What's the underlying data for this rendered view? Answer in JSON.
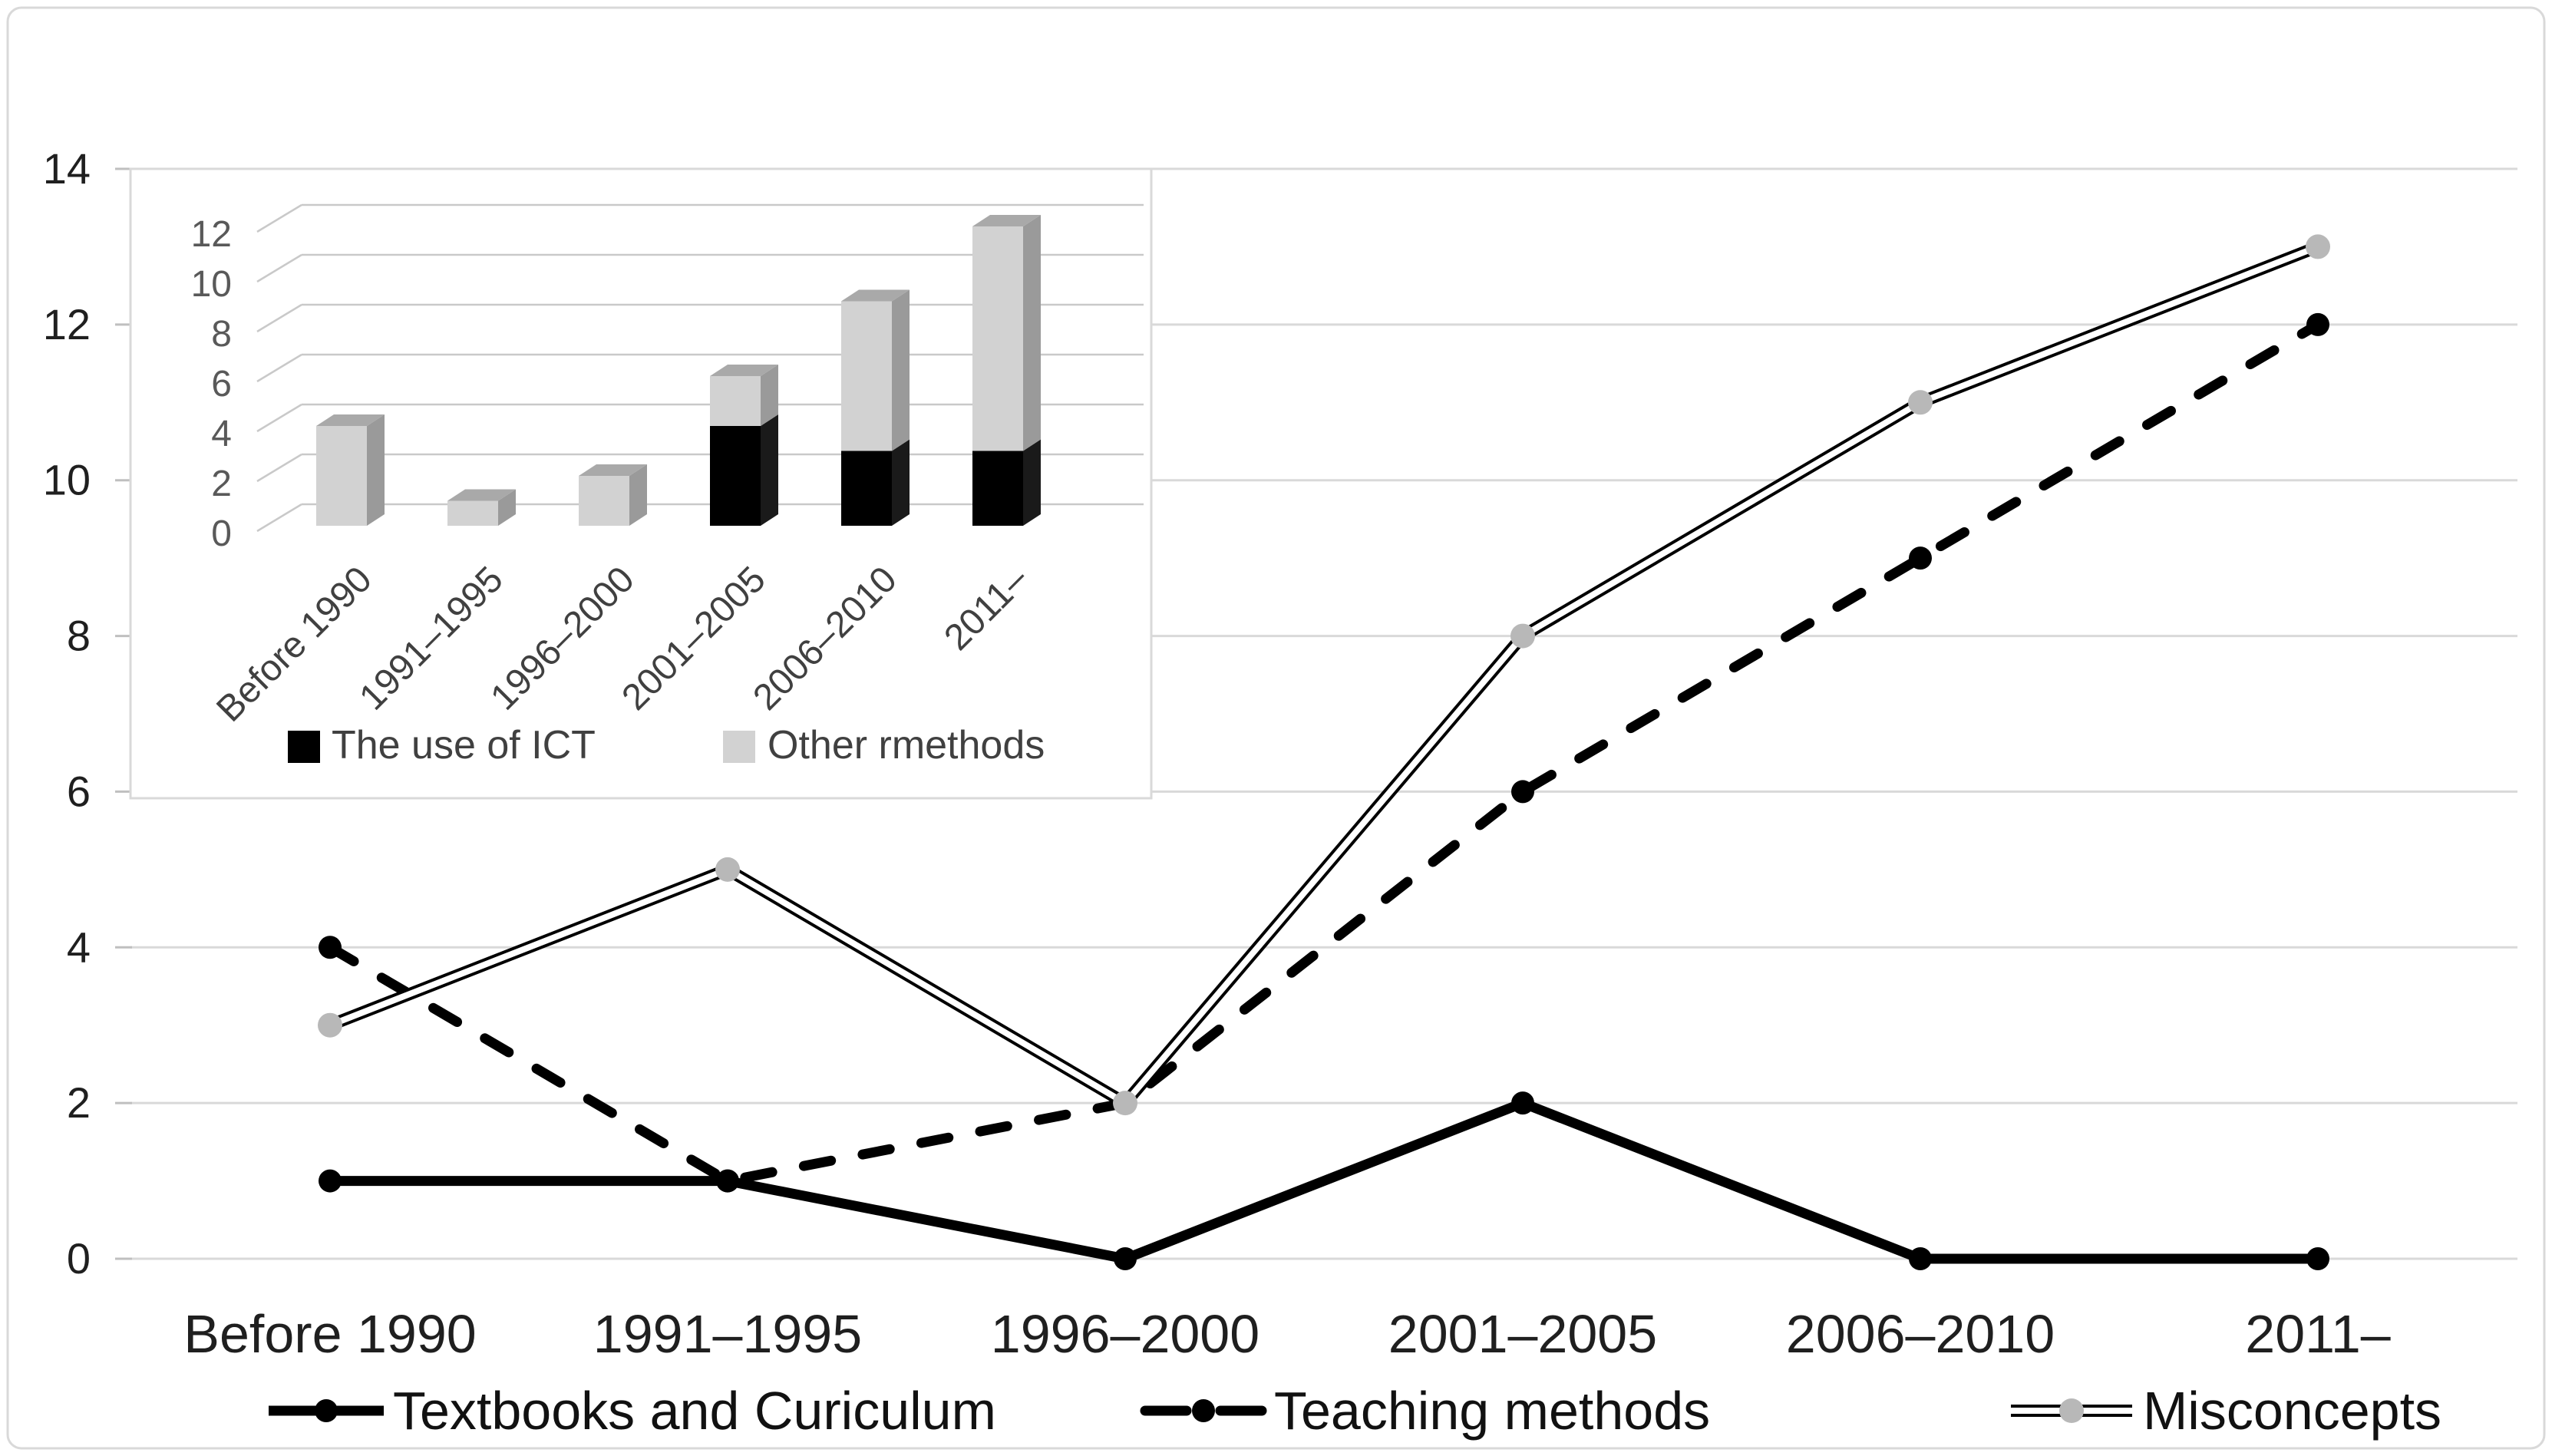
{
  "figure": {
    "title": "",
    "background_color": "#ffffff",
    "frame_color": "#d9d9d9",
    "gridline_color": "#d9d9d9"
  },
  "chart_data": [
    {
      "id": "main-line-chart",
      "type": "line",
      "categories": [
        "Before 1990",
        "1991–1995",
        "1996–2000",
        "2001–2005",
        "2006–2010",
        "2011–"
      ],
      "series": [
        {
          "name": "Textbooks and Curiculum",
          "values": [
            1,
            1,
            0,
            2,
            0,
            0
          ],
          "line_style": "solid",
          "color": "#000000",
          "marker_color": "#000000"
        },
        {
          "name": "Teaching methods",
          "values": [
            4,
            1,
            2,
            6,
            9,
            12
          ],
          "line_style": "dashed",
          "color": "#000000",
          "marker_color": "#000000"
        },
        {
          "name": "Misconcepts",
          "values": [
            3,
            5,
            2,
            8,
            11,
            13
          ],
          "line_style": "double",
          "color": "#000000",
          "marker_color": "#b8b8b8"
        }
      ],
      "xlabel": "",
      "ylabel": "",
      "ylim": [
        0,
        14
      ],
      "yticks": [
        0,
        2,
        4,
        6,
        8,
        10,
        12,
        14
      ],
      "grid": true,
      "legend_position": "bottom"
    },
    {
      "id": "inset-bar-chart",
      "type": "bar",
      "stacked": true,
      "effect": "3d",
      "categories": [
        "Before 1990",
        "1991–1995",
        "1996–2000",
        "2001–2005",
        "2006–2010",
        "2011–"
      ],
      "series": [
        {
          "name": "The use of ICT",
          "values": [
            0,
            0,
            0,
            4,
            3,
            3
          ],
          "color": "#000000",
          "side_color": "#1a1a1a",
          "top_color": "#3a3a3a"
        },
        {
          "name": "Other rmethods",
          "values": [
            4,
            1,
            2,
            2,
            6,
            9
          ],
          "color": "#d2d2d2",
          "side_color": "#9a9a9a",
          "top_color": "#a9a9a9"
        }
      ],
      "xlabel": "",
      "ylabel": "",
      "ylim": [
        0,
        12
      ],
      "yticks": [
        0,
        2,
        4,
        6,
        8,
        10,
        12
      ],
      "grid": true,
      "legend_position": "bottom"
    }
  ]
}
